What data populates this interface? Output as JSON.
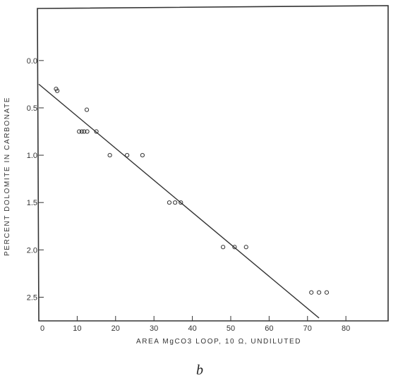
{
  "chart_data": {
    "type": "scatter",
    "panel_label": "b",
    "xlabel": "AREA MgCO3 LOOP, 10 Ω, UNDILUTED",
    "ylabel": "PERCENT DOLOMITE IN CARBONATE",
    "x_ticks": [
      "0",
      "10",
      "20",
      "30",
      "40",
      "50",
      "60",
      "70",
      "80"
    ],
    "y_ticks": [
      "0.0",
      "0.5",
      "1.0",
      "1.5",
      "2.0",
      "2.5"
    ],
    "xlim": [
      0,
      91
    ],
    "ylim": [
      -0.55,
      2.75
    ],
    "y_inverted": true,
    "grid": false,
    "series": [
      {
        "points": [
          {
            "x": 4.5,
            "y": 0.3
          },
          {
            "x": 4.8,
            "y": 0.32
          },
          {
            "x": 12.5,
            "y": 0.52
          },
          {
            "x": 10.5,
            "y": 0.75
          },
          {
            "x": 11.2,
            "y": 0.75
          },
          {
            "x": 11.8,
            "y": 0.75
          },
          {
            "x": 12.6,
            "y": 0.75
          },
          {
            "x": 15.0,
            "y": 0.75
          },
          {
            "x": 18.5,
            "y": 1.0
          },
          {
            "x": 23.0,
            "y": 1.0
          },
          {
            "x": 27.0,
            "y": 1.0
          },
          {
            "x": 34.0,
            "y": 1.5
          },
          {
            "x": 35.5,
            "y": 1.5
          },
          {
            "x": 37.0,
            "y": 1.5
          },
          {
            "x": 48.0,
            "y": 1.97
          },
          {
            "x": 51.0,
            "y": 1.97
          },
          {
            "x": 54.0,
            "y": 1.97
          },
          {
            "x": 71.0,
            "y": 2.45
          },
          {
            "x": 73.0,
            "y": 2.45
          },
          {
            "x": 75.0,
            "y": 2.45
          }
        ]
      }
    ],
    "fit_line": {
      "x": [
        0,
        73
      ],
      "y": [
        0.25,
        2.72
      ]
    }
  }
}
